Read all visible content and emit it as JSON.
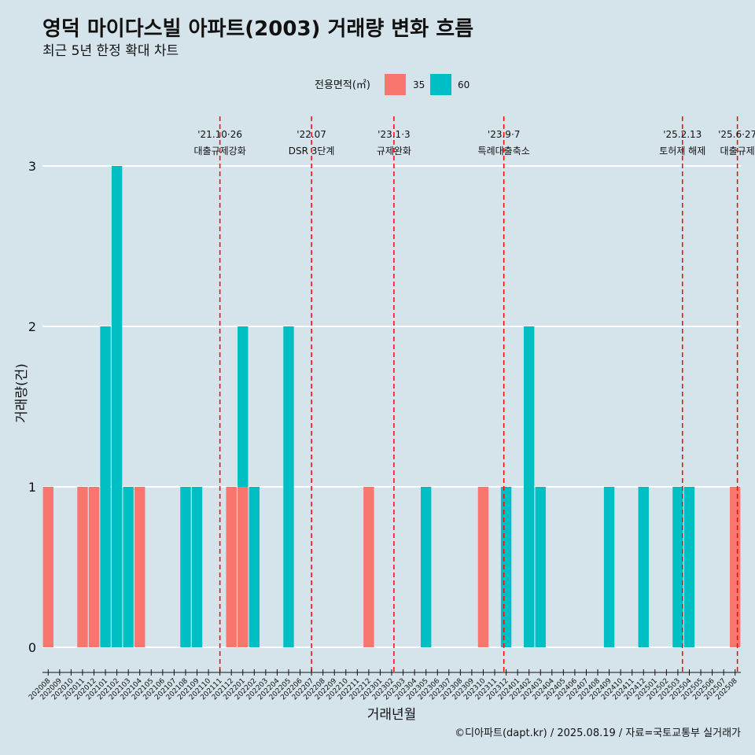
{
  "chart_data": {
    "type": "bar",
    "title": "영덕 마이다스빌 아파트(2003) 거래량 변화 흐름",
    "subtitle": "최근 5년 한정 확대 차트",
    "xlabel": "거래년월",
    "ylabel": "거래량(건)",
    "ylim": [
      0,
      3
    ],
    "yticks": [
      "0",
      "1",
      "2",
      "3"
    ],
    "legend": {
      "title": "전용면적(㎡)",
      "position": "top",
      "items": [
        {
          "name": "35",
          "color": "#f8766d"
        },
        {
          "name": "60",
          "color": "#00bfc4"
        }
      ]
    },
    "categories": [
      "202008",
      "202009",
      "202010",
      "202011",
      "202012",
      "202101",
      "202102",
      "202103",
      "202104",
      "202105",
      "202106",
      "202107",
      "202108",
      "202109",
      "202110",
      "202111",
      "202112",
      "202201",
      "202202",
      "202203",
      "202204",
      "202205",
      "202206",
      "202207",
      "202208",
      "202209",
      "202210",
      "202211",
      "202212",
      "202301",
      "202302",
      "202303",
      "202304",
      "202305",
      "202306",
      "202307",
      "202308",
      "202309",
      "202310",
      "202311",
      "202312",
      "202401",
      "202402",
      "202403",
      "202404",
      "202405",
      "202406",
      "202407",
      "202408",
      "202409",
      "202410",
      "202411",
      "202412",
      "202501",
      "202502",
      "202503",
      "202504",
      "202505",
      "202506",
      "202507",
      "202508"
    ],
    "bars": [
      {
        "month": "202008",
        "segments": [
          {
            "series": "35",
            "value": 1
          }
        ]
      },
      {
        "month": "202011",
        "segments": [
          {
            "series": "35",
            "value": 1
          }
        ]
      },
      {
        "month": "202012",
        "segments": [
          {
            "series": "35",
            "value": 1
          }
        ]
      },
      {
        "month": "202101",
        "segments": [
          {
            "series": "60",
            "value": 2
          }
        ]
      },
      {
        "month": "202102",
        "segments": [
          {
            "series": "60",
            "value": 3
          }
        ]
      },
      {
        "month": "202103",
        "segments": [
          {
            "series": "60",
            "value": 1
          }
        ]
      },
      {
        "month": "202104",
        "segments": [
          {
            "series": "35",
            "value": 1
          }
        ]
      },
      {
        "month": "202108",
        "segments": [
          {
            "series": "60",
            "value": 1
          }
        ]
      },
      {
        "month": "202109",
        "segments": [
          {
            "series": "60",
            "value": 1
          }
        ]
      },
      {
        "month": "202112",
        "segments": [
          {
            "series": "35",
            "value": 1
          }
        ]
      },
      {
        "month": "202201",
        "segments": [
          {
            "series": "35",
            "value": 1
          },
          {
            "series": "60",
            "value": 1
          }
        ]
      },
      {
        "month": "202202",
        "segments": [
          {
            "series": "60",
            "value": 1
          }
        ]
      },
      {
        "month": "202205",
        "segments": [
          {
            "series": "60",
            "value": 2
          }
        ]
      },
      {
        "month": "202212",
        "segments": [
          {
            "series": "35",
            "value": 1
          }
        ]
      },
      {
        "month": "202305",
        "segments": [
          {
            "series": "60",
            "value": 1
          }
        ]
      },
      {
        "month": "202310",
        "segments": [
          {
            "series": "35",
            "value": 1
          }
        ]
      },
      {
        "month": "202312",
        "segments": [
          {
            "series": "60",
            "value": 1
          }
        ]
      },
      {
        "month": "202402",
        "segments": [
          {
            "series": "60",
            "value": 2
          }
        ]
      },
      {
        "month": "202403",
        "segments": [
          {
            "series": "60",
            "value": 1
          }
        ]
      },
      {
        "month": "202409",
        "segments": [
          {
            "series": "60",
            "value": 1
          }
        ]
      },
      {
        "month": "202412",
        "segments": [
          {
            "series": "60",
            "value": 1
          }
        ]
      },
      {
        "month": "202503",
        "segments": [
          {
            "series": "60",
            "value": 1
          }
        ]
      },
      {
        "month": "202504",
        "segments": [
          {
            "series": "60",
            "value": 1
          }
        ]
      },
      {
        "month": "202508",
        "segments": [
          {
            "series": "35",
            "value": 1
          }
        ]
      }
    ],
    "events": [
      {
        "date": "'21.10·26",
        "label": "대출규제강화",
        "month_value": 2021.83
      },
      {
        "date": "'22.07",
        "label": "DSR 3단계",
        "month_value": 2022.5
      },
      {
        "date": "'23.1·3",
        "label": "규제완화",
        "month_value": 2023.1
      },
      {
        "date": "'23.9·7",
        "label": "특례대출축소",
        "month_value": 2023.9
      },
      {
        "date": "'25.2.13",
        "label": "토허제 해제",
        "month_value": 2025.2
      },
      {
        "date": "'25.6·27",
        "label": "대출규제",
        "month_value": 2025.6
      }
    ],
    "event_line_color": "#ff0000",
    "grid": true
  },
  "caption": "©디아파트(dapt.kr) / 2025.08.19 / 자료=국토교통부 실거래가"
}
